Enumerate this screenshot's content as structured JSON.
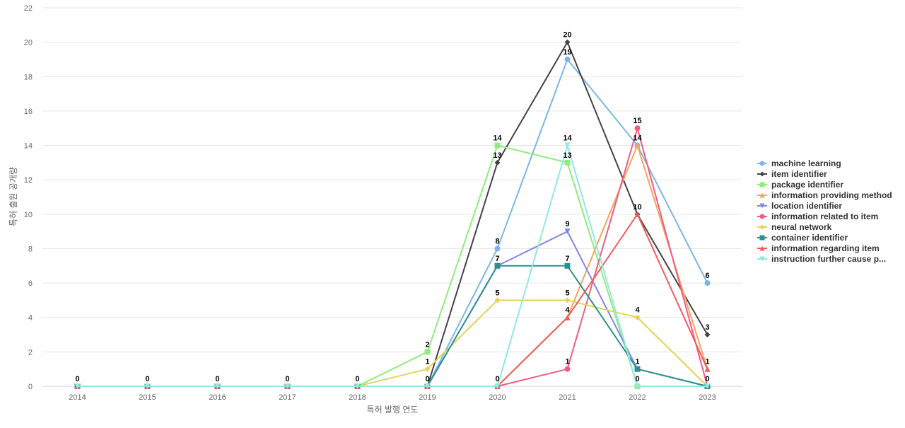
{
  "chart_data": {
    "type": "line",
    "title": "",
    "xlabel": "특허 발행 연도",
    "ylabel": "특허 출원 공개량",
    "ylim": [
      0,
      22
    ],
    "yticks": [
      0,
      2,
      4,
      6,
      8,
      10,
      12,
      14,
      16,
      18,
      20,
      22
    ],
    "grid": true,
    "legend_position": "right",
    "categories": [
      "2014",
      "2015",
      "2016",
      "2017",
      "2018",
      "2019",
      "2020",
      "2021",
      "2022",
      "2023"
    ],
    "series": [
      {
        "name": "machine learning",
        "color": "#7cb5ec",
        "marker": "circle",
        "values": [
          0,
          0,
          0,
          0,
          0,
          0,
          8,
          19,
          14,
          6
        ]
      },
      {
        "name": "item identifier",
        "color": "#434348",
        "marker": "diamond",
        "values": [
          0,
          0,
          0,
          0,
          0,
          0,
          13,
          20,
          10,
          3
        ]
      },
      {
        "name": "package identifier",
        "color": "#90ed7d",
        "marker": "square",
        "values": [
          0,
          0,
          0,
          0,
          0,
          2,
          14,
          13,
          0,
          0
        ]
      },
      {
        "name": "information providing method",
        "color": "#f7a35c",
        "marker": "triangle",
        "values": [
          0,
          0,
          0,
          0,
          0,
          0,
          0,
          4,
          14,
          1
        ]
      },
      {
        "name": "location identifier",
        "color": "#8085e9",
        "marker": "triangle-down",
        "values": [
          0,
          0,
          0,
          0,
          0,
          0,
          7,
          9,
          1,
          0
        ]
      },
      {
        "name": "information related to item",
        "color": "#f15c80",
        "marker": "circle",
        "values": [
          0,
          0,
          0,
          0,
          0,
          0,
          0,
          1,
          15,
          0
        ]
      },
      {
        "name": "neural network",
        "color": "#e4d354",
        "marker": "diamond",
        "values": [
          0,
          0,
          0,
          0,
          0,
          1,
          5,
          5,
          4,
          0
        ]
      },
      {
        "name": "container identifier",
        "color": "#2b908f",
        "marker": "square",
        "values": [
          0,
          0,
          0,
          0,
          0,
          0,
          7,
          7,
          1,
          0
        ]
      },
      {
        "name": "information regarding item",
        "color": "#f45b5b",
        "marker": "triangle",
        "values": [
          0,
          0,
          0,
          0,
          0,
          0,
          0,
          4,
          10,
          1
        ]
      },
      {
        "name": "instruction further cause p...",
        "color": "#91e8e1",
        "marker": "triangle-down",
        "values": [
          0,
          0,
          0,
          0,
          0,
          0,
          0,
          14,
          0,
          0
        ]
      }
    ],
    "data_labels": [
      {
        "category": "2014",
        "text": "0"
      },
      {
        "category": "2015",
        "text": "0"
      },
      {
        "category": "2016",
        "text": "0"
      },
      {
        "category": "2017",
        "text": "0"
      },
      {
        "category": "2018",
        "text": "0"
      },
      {
        "category": "2019",
        "text": "2",
        "value": 2
      },
      {
        "category": "2019",
        "text": "1",
        "value": 1
      },
      {
        "category": "2019",
        "text": "0",
        "value": 0
      },
      {
        "category": "2020",
        "text": "14",
        "value": 14
      },
      {
        "category": "2020",
        "text": "13",
        "value": 13
      },
      {
        "category": "2020",
        "text": "8",
        "value": 8
      },
      {
        "category": "2020",
        "text": "7",
        "value": 7
      },
      {
        "category": "2020",
        "text": "5",
        "value": 5
      },
      {
        "category": "2020",
        "text": "0",
        "value": 0
      },
      {
        "category": "2021",
        "text": "20",
        "value": 20
      },
      {
        "category": "2021",
        "text": "19",
        "value": 19
      },
      {
        "category": "2021",
        "text": "14",
        "value": 14
      },
      {
        "category": "2021",
        "text": "13",
        "value": 13
      },
      {
        "category": "2021",
        "text": "9",
        "value": 9
      },
      {
        "category": "2021",
        "text": "7",
        "value": 7
      },
      {
        "category": "2021",
        "text": "5",
        "value": 5
      },
      {
        "category": "2021",
        "text": "4",
        "value": 4
      },
      {
        "category": "2021",
        "text": "1",
        "value": 1
      },
      {
        "category": "2022",
        "text": "15",
        "value": 15
      },
      {
        "category": "2022",
        "text": "14",
        "value": 14
      },
      {
        "category": "2022",
        "text": "10",
        "value": 10
      },
      {
        "category": "2022",
        "text": "4",
        "value": 4
      },
      {
        "category": "2022",
        "text": "1",
        "value": 1
      },
      {
        "category": "2022",
        "text": "0",
        "value": 0
      },
      {
        "category": "2023",
        "text": "6",
        "value": 6
      },
      {
        "category": "2023",
        "text": "3",
        "value": 3
      },
      {
        "category": "2023",
        "text": "1",
        "value": 1
      },
      {
        "category": "2023",
        "text": "0",
        "value": 0
      }
    ]
  }
}
